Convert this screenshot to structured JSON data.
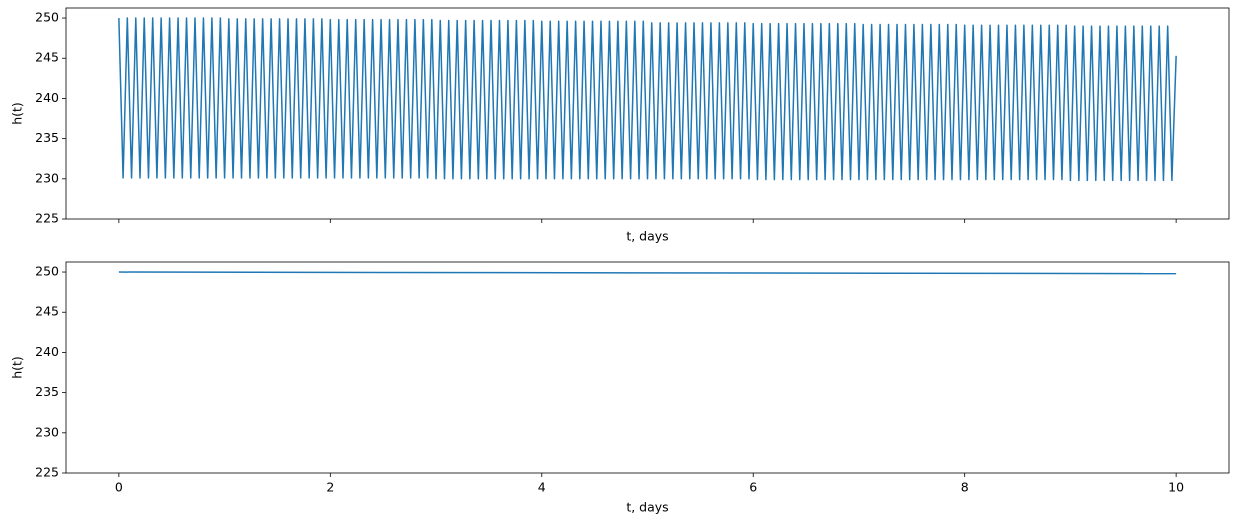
{
  "chart_data": [
    {
      "type": "line",
      "xlabel": "t, days",
      "ylabel": "h(t)",
      "color": "#1f77b4",
      "xlim": [
        -0.5,
        10.5
      ],
      "ylim": [
        225,
        251.25
      ],
      "xticks": [
        0,
        2,
        4,
        6,
        8,
        10
      ],
      "show_xtick_labels": false,
      "yticks": [
        225,
        230,
        235,
        240,
        245,
        250
      ],
      "x": [
        0,
        0.04,
        0.08,
        0.12,
        0.16,
        0.2,
        0.24,
        0.28,
        0.32,
        0.36,
        0.4,
        0.44,
        0.48,
        0.52,
        0.56,
        0.6,
        0.64,
        0.68,
        0.72,
        0.76,
        0.8,
        0.84,
        0.88,
        0.92,
        0.96,
        1,
        1.04,
        1.08,
        1.12,
        1.16,
        1.2,
        1.24,
        1.28,
        1.32,
        1.36,
        1.4,
        1.44,
        1.48,
        1.52,
        1.56,
        1.6,
        1.64,
        1.68,
        1.72,
        1.76,
        1.8,
        1.84,
        1.88,
        1.92,
        1.96,
        2,
        2.04,
        2.08,
        2.12,
        2.16,
        2.2,
        2.24,
        2.28,
        2.32,
        2.36,
        2.4,
        2.44,
        2.48,
        2.52,
        2.56,
        2.6,
        2.64,
        2.68,
        2.72,
        2.76,
        2.8,
        2.84,
        2.88,
        2.92,
        2.96,
        3,
        3.04,
        3.08,
        3.12,
        3.16,
        3.2,
        3.24,
        3.28,
        3.32,
        3.36,
        3.4,
        3.44,
        3.48,
        3.52,
        3.56,
        3.6,
        3.64,
        3.68,
        3.72,
        3.76,
        3.8,
        3.84,
        3.88,
        3.92,
        3.96,
        4,
        4.04,
        4.08,
        4.12,
        4.16,
        4.2,
        4.24,
        4.28,
        4.32,
        4.36,
        4.4,
        4.44,
        4.48,
        4.52,
        4.56,
        4.6,
        4.64,
        4.68,
        4.72,
        4.76,
        4.8,
        4.84,
        4.88,
        4.92,
        4.96,
        5,
        5.04,
        5.08,
        5.12,
        5.16,
        5.2,
        5.24,
        5.28,
        5.32,
        5.36,
        5.4,
        5.44,
        5.48,
        5.52,
        5.56,
        5.6,
        5.64,
        5.68,
        5.72,
        5.76,
        5.8,
        5.84,
        5.88,
        5.92,
        5.96,
        6,
        6.04,
        6.08,
        6.12,
        6.16,
        6.2,
        6.24,
        6.28,
        6.32,
        6.36,
        6.4,
        6.44,
        6.48,
        6.52,
        6.56,
        6.6,
        6.64,
        6.68,
        6.72,
        6.76,
        6.8,
        6.84,
        6.88,
        6.92,
        6.96,
        7,
        7.04,
        7.08,
        7.12,
        7.16,
        7.2,
        7.24,
        7.28,
        7.32,
        7.36,
        7.4,
        7.44,
        7.48,
        7.52,
        7.56,
        7.6,
        7.64,
        7.68,
        7.72,
        7.76,
        7.8,
        7.84,
        7.88,
        7.92,
        7.96,
        8,
        8.04,
        8.08,
        8.12,
        8.16,
        8.2,
        8.24,
        8.28,
        8.32,
        8.36,
        8.4,
        8.44,
        8.48,
        8.52,
        8.56,
        8.6,
        8.64,
        8.68,
        8.72,
        8.76,
        8.8,
        8.84,
        8.88,
        8.92,
        8.96,
        9,
        9.04,
        9.08,
        9.12,
        9.16,
        9.2,
        9.24,
        9.28,
        9.32,
        9.36,
        9.4,
        9.44,
        9.48,
        9.52,
        9.56,
        9.6,
        9.64,
        9.68,
        9.72,
        9.76,
        9.8,
        9.84,
        9.88,
        9.92,
        9.96,
        10
      ],
      "values": [
        250,
        230.1,
        250,
        230.1,
        250,
        230.1,
        250,
        230.1,
        250,
        230.1,
        250,
        230.1,
        250,
        230.1,
        250,
        230.1,
        250,
        230.1,
        250,
        230.1,
        250,
        230.1,
        250,
        230.1,
        250,
        230.1,
        249.9,
        230.1,
        249.9,
        230.1,
        249.9,
        230.1,
        249.9,
        230.1,
        249.9,
        230.1,
        249.9,
        230.1,
        249.9,
        230.1,
        249.9,
        230.1,
        249.9,
        230.1,
        249.9,
        230.1,
        249.9,
        230.1,
        249.9,
        230.1,
        249.8,
        230.1,
        249.8,
        230.1,
        249.8,
        230.1,
        249.8,
        230.1,
        249.8,
        230.1,
        249.8,
        230.1,
        249.8,
        230.1,
        249.8,
        230.1,
        249.8,
        230.1,
        249.8,
        230.1,
        249.8,
        230.1,
        249.8,
        230.1,
        249.8,
        230,
        249.7,
        230,
        249.7,
        230,
        249.7,
        230,
        249.7,
        230,
        249.7,
        230,
        249.7,
        230,
        249.7,
        230,
        249.7,
        230,
        249.7,
        230,
        249.7,
        230,
        249.7,
        230,
        249.7,
        230,
        249.6,
        230,
        249.6,
        230,
        249.6,
        230,
        249.6,
        230,
        249.6,
        230,
        249.6,
        230,
        249.6,
        230,
        249.6,
        230,
        249.6,
        230,
        249.6,
        230,
        249.6,
        230,
        249.6,
        230,
        249.6,
        230,
        249.4,
        230,
        249.4,
        230,
        249.4,
        230,
        249.4,
        230,
        249.4,
        230,
        249.4,
        230,
        249.4,
        230,
        249.4,
        230,
        249.4,
        230,
        249.4,
        230,
        249.4,
        230,
        249.4,
        230,
        249.3,
        229.9,
        249.3,
        229.9,
        249.3,
        229.9,
        249.3,
        229.9,
        249.3,
        229.9,
        249.3,
        229.9,
        249.3,
        229.9,
        249.3,
        229.9,
        249.3,
        229.9,
        249.3,
        229.9,
        249.3,
        229.9,
        249.3,
        229.9,
        249.3,
        229.9,
        249.2,
        229.9,
        249.2,
        229.9,
        249.2,
        229.9,
        249.2,
        229.9,
        249.2,
        229.9,
        249.2,
        229.9,
        249.2,
        229.9,
        249.2,
        229.9,
        249.2,
        229.9,
        249.2,
        229.9,
        249.2,
        229.9,
        249.2,
        229.9,
        249.1,
        229.9,
        249.1,
        229.9,
        249.1,
        229.9,
        249.1,
        229.9,
        249.1,
        229.9,
        249.1,
        229.9,
        249.1,
        229.9,
        249.1,
        229.9,
        249.1,
        229.9,
        249.1,
        229.9,
        249.1,
        229.9,
        249.1,
        229.9,
        249.1,
        229.8,
        249,
        229.8,
        249,
        229.8,
        249,
        229.8,
        249,
        229.8,
        249,
        229.8,
        249,
        229.8,
        249,
        229.8,
        249,
        229.8,
        249,
        229.8,
        249,
        229.8,
        249,
        229.8,
        249,
        229.8,
        245.3
      ]
    },
    {
      "type": "line",
      "xlabel": "t, days",
      "ylabel": "h(t)",
      "color": "#1f77b4",
      "xlim": [
        -0.5,
        10.5
      ],
      "ylim": [
        225,
        251.25
      ],
      "xticks": [
        0,
        2,
        4,
        6,
        8,
        10
      ],
      "show_xtick_labels": true,
      "yticks": [
        225,
        230,
        235,
        240,
        245,
        250
      ],
      "x": [
        0,
        10
      ],
      "values": [
        250,
        249.8
      ]
    }
  ]
}
